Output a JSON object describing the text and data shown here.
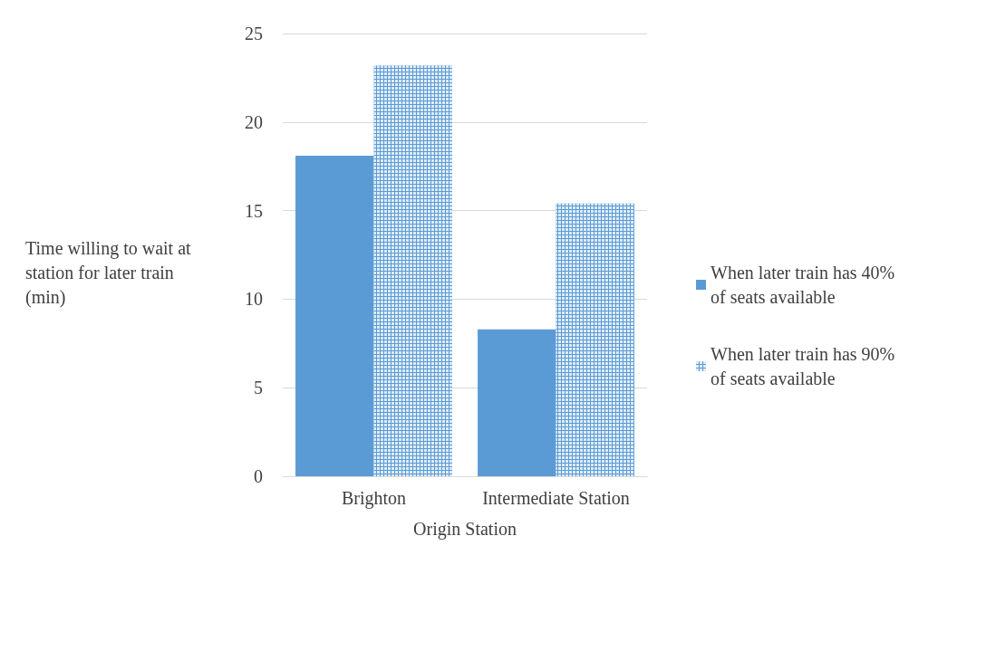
{
  "chart_data": {
    "type": "bar",
    "xlabel": "Origin Station",
    "ylabel": "Time willing to wait at station for later train (min)",
    "categories": [
      "Brighton",
      "Intermediate Station"
    ],
    "series": [
      {
        "name": "When later train has 40% of seats available",
        "color": "#5b9bd5",
        "values": [
          18.1,
          8.3
        ]
      },
      {
        "name": "When later train has 90% of seats available",
        "color": "#5b9bd5",
        "values": [
          23.2,
          15.4
        ]
      }
    ],
    "ylim": [
      0,
      25
    ],
    "yticks": [
      0,
      5,
      10,
      15,
      20,
      25
    ],
    "grid": "y",
    "legend": "right"
  }
}
